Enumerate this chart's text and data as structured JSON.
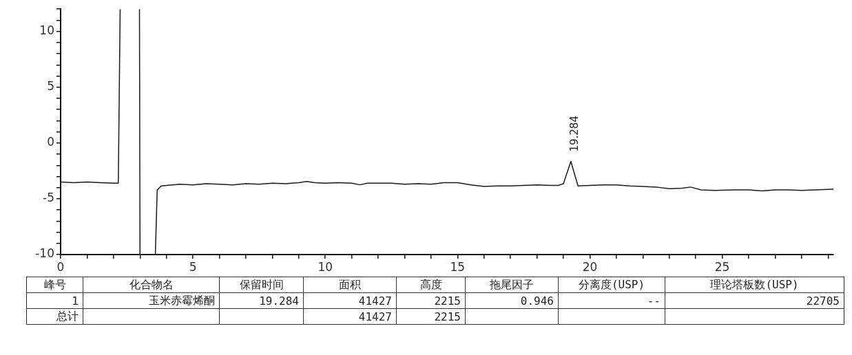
{
  "chart_data": [
    {
      "type": "line",
      "xlim": [
        0,
        29.2
      ],
      "ylim": [
        -10,
        12
      ],
      "xticks": [
        0,
        {
          "value": 1,
          "label": null
        },
        {
          "value": 2,
          "label": null
        },
        {
          "value": 3,
          "label": null
        },
        {
          "value": 4,
          "label": null
        },
        5,
        {
          "value": 6,
          "label": null
        },
        {
          "value": 7,
          "label": null
        },
        {
          "value": 8,
          "label": null
        },
        {
          "value": 9,
          "label": null
        },
        10,
        {
          "value": 11,
          "label": null
        },
        {
          "value": 12,
          "label": null
        },
        {
          "value": 13,
          "label": null
        },
        {
          "value": 14,
          "label": null
        },
        15,
        {
          "value": 16,
          "label": null
        },
        {
          "value": 17,
          "label": null
        },
        {
          "value": 18,
          "label": null
        },
        {
          "value": 19,
          "label": null
        },
        20,
        {
          "value": 21,
          "label": null
        },
        {
          "value": 22,
          "label": null
        },
        {
          "value": 23,
          "label": null
        },
        {
          "value": 24,
          "label": null
        },
        25,
        {
          "value": 26,
          "label": null
        },
        {
          "value": 27,
          "label": null
        },
        {
          "value": 28,
          "label": null
        },
        {
          "value": 29,
          "label": null
        }
      ],
      "yticks": [
        -10,
        {
          "value": -9,
          "label": null
        },
        {
          "value": -8,
          "label": null
        },
        {
          "value": -7,
          "label": null
        },
        {
          "value": -6,
          "label": null
        },
        -5,
        {
          "value": -4,
          "label": null
        },
        {
          "value": -3,
          "label": null
        },
        {
          "value": -2,
          "label": null
        },
        {
          "value": -1,
          "label": null
        },
        0,
        {
          "value": 1,
          "label": null
        },
        {
          "value": 2,
          "label": null
        },
        {
          "value": 3,
          "label": null
        },
        {
          "value": 4,
          "label": null
        },
        5,
        {
          "value": 6,
          "label": null
        },
        {
          "value": 7,
          "label": null
        },
        {
          "value": 8,
          "label": null
        },
        {
          "value": 9,
          "label": null
        },
        10,
        {
          "value": 11,
          "label": null
        },
        {
          "value": 12,
          "label": null
        }
      ],
      "grid": false,
      "legend": false,
      "marker": "none",
      "line_style": "solid",
      "annotations": [
        {
          "text": "19.284",
          "x": 19.284,
          "y": -1.65
        }
      ],
      "series": [
        {
          "color": "#1a1a1a",
          "x": [
            0,
            0.5,
            1,
            1.5,
            2,
            2.18,
            2.25,
            2.6,
            2.98,
            3.0,
            3.58,
            3.65,
            3.8,
            4.5,
            5,
            5.5,
            6,
            6.5,
            7,
            7.5,
            8,
            8.5,
            9,
            9.3,
            9.6,
            10,
            10.5,
            11,
            11.3,
            11.6,
            12,
            12.5,
            13,
            13.5,
            14,
            14.5,
            15,
            15.5,
            16,
            16.5,
            17,
            17.5,
            18,
            18.5,
            18.8,
            19.0,
            19.28,
            19.55,
            20,
            20.5,
            21,
            21.5,
            22,
            22.5,
            23,
            23.5,
            23.8,
            24.2,
            24.7,
            25.5,
            26,
            26.5,
            27,
            27.5,
            28,
            28.5,
            29.2
          ],
          "values": [
            -3.5,
            -3.55,
            -3.5,
            -3.55,
            -3.6,
            -3.6,
            12,
            null,
            12,
            -10,
            -10,
            -4.2,
            -3.85,
            -3.7,
            -3.75,
            -3.65,
            -3.7,
            -3.75,
            -3.65,
            -3.7,
            -3.6,
            -3.65,
            -3.55,
            -3.45,
            -3.55,
            -3.6,
            -3.55,
            -3.6,
            -3.75,
            -3.6,
            -3.6,
            -3.6,
            -3.7,
            -3.65,
            -3.7,
            -3.55,
            -3.55,
            -3.75,
            -3.9,
            -3.85,
            -3.85,
            -3.8,
            -3.75,
            -3.8,
            -3.8,
            -3.65,
            -1.65,
            -3.85,
            -3.8,
            -3.75,
            -3.75,
            -3.85,
            -3.9,
            -3.95,
            -4.1,
            -4.05,
            -3.95,
            -4.2,
            -4.25,
            -4.2,
            -4.2,
            -4.3,
            -4.2,
            -4.2,
            -4.25,
            -4.2,
            -4.15
          ]
        }
      ]
    },
    {
      "type": "other",
      "annotations": [
        "峰号",
        "化合物名",
        "保留时间",
        "面积",
        "高度",
        "拖尾因子",
        "分离度(USP)",
        "理论塔板数(USP)",
        "1",
        "玉米赤霉烯酮",
        "19.284",
        "41427",
        "2215",
        "0.946",
        "--",
        "22705",
        "总计",
        null,
        null,
        "41427",
        "2215",
        null,
        null,
        null
      ]
    }
  ]
}
